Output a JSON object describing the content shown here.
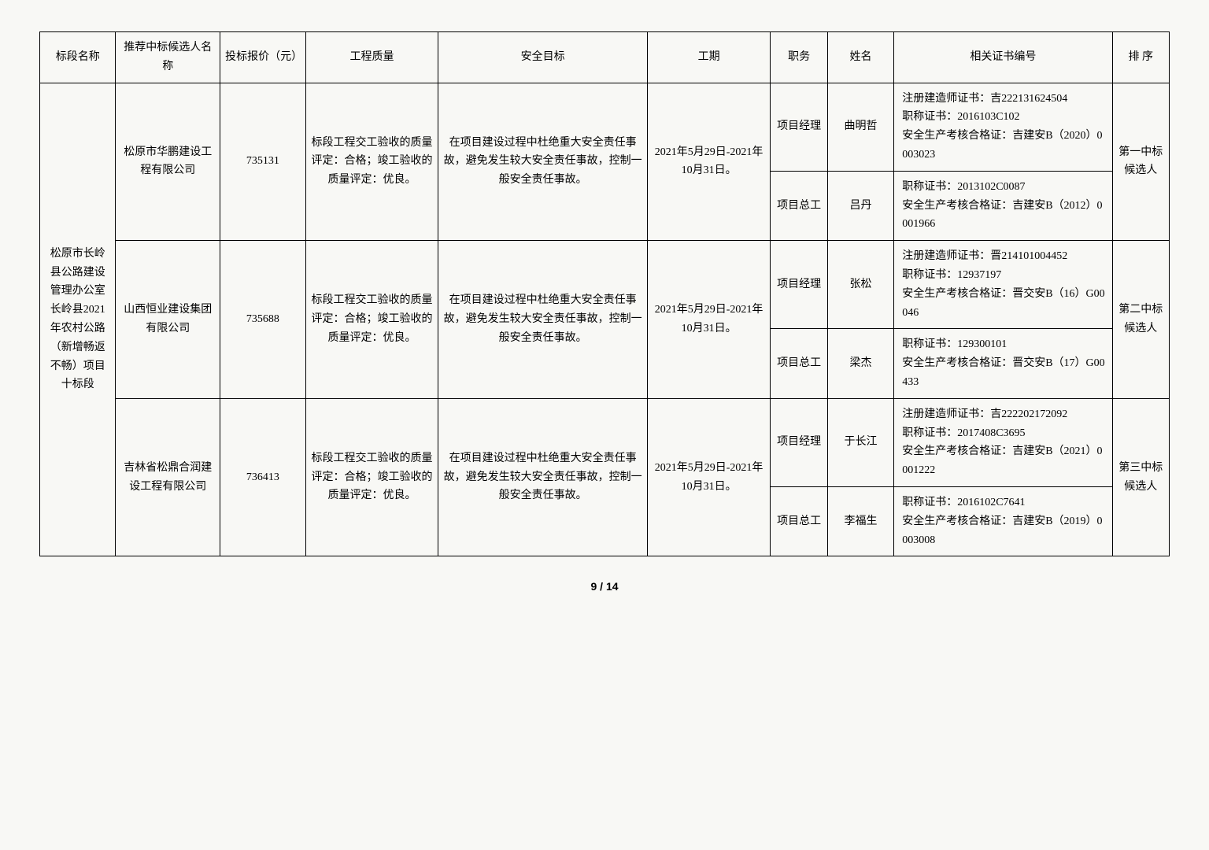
{
  "headers": {
    "section": "标段名称",
    "candidate": "推荐中标候选人名称",
    "bid": "投标报价（元）",
    "quality": "工程质量",
    "safety": "安全目标",
    "period": "工期",
    "role": "职务",
    "name": "姓名",
    "cert": "相关证书编号",
    "rank": "排 序"
  },
  "section_name": "松原市长岭县公路建设管理办公室长岭县2021年农村公路（新增畅返不畅）项目十标段",
  "rows": [
    {
      "candidate": "松原市华鹏建设工程有限公司",
      "bid": "735131",
      "quality": "标段工程交工验收的质量评定：合格；竣工验收的质量评定：优良。",
      "safety": "在项目建设过程中杜绝重大安全责任事故，避免发生较大安全责任事故，控制一般安全责任事故。",
      "period": "2021年5月29日-2021年10月31日。",
      "rank": "第一中标候选人",
      "people": [
        {
          "role": "项目经理",
          "name": "曲明哲",
          "cert": "注册建造师证书：吉222131624504\n职称证书：2016103C102\n安全生产考核合格证：吉建安B（2020）0003023"
        },
        {
          "role": "项目总工",
          "name": "吕丹",
          "cert": "职称证书：2013102C0087\n安全生产考核合格证：吉建安B（2012）0001966"
        }
      ]
    },
    {
      "candidate": "山西恒业建设集团有限公司",
      "bid": "735688",
      "quality": "标段工程交工验收的质量评定：合格；竣工验收的质量评定：优良。",
      "safety": "在项目建设过程中杜绝重大安全责任事故，避免发生较大安全责任事故，控制一般安全责任事故。",
      "period": "2021年5月29日-2021年10月31日。",
      "rank": "第二中标候选人",
      "people": [
        {
          "role": "项目经理",
          "name": "张松",
          "cert": "注册建造师证书：晋214101004452\n职称证书：12937197\n安全生产考核合格证：晋交安B（16）G00046"
        },
        {
          "role": "项目总工",
          "name": "梁杰",
          "cert": "职称证书：129300101\n安全生产考核合格证：晋交安B（17）G00433"
        }
      ]
    },
    {
      "candidate": "吉林省松鼎合润建设工程有限公司",
      "bid": "736413",
      "quality": "标段工程交工验收的质量评定：合格；竣工验收的质量评定：优良。",
      "safety": "在项目建设过程中杜绝重大安全责任事故，避免发生较大安全责任事故，控制一般安全责任事故。",
      "period": "2021年5月29日-2021年10月31日。",
      "rank": "第三中标候选人",
      "people": [
        {
          "role": "项目经理",
          "name": "于长江",
          "cert": "注册建造师证书：吉222202172092\n职称证书：2017408C3695\n安全生产考核合格证：吉建安B（2021）0001222"
        },
        {
          "role": "项目总工",
          "name": "李福生",
          "cert": "职称证书：2016102C7641\n安全生产考核合格证：吉建安B（2019）0003008"
        }
      ]
    }
  ],
  "page_number": "9 / 14",
  "style": {
    "background_color": "#f8f8f5",
    "border_color": "#000000",
    "text_color": "#000000",
    "font_family": "SimSun",
    "font_size_pt": 10.5,
    "line_height": 1.7
  }
}
